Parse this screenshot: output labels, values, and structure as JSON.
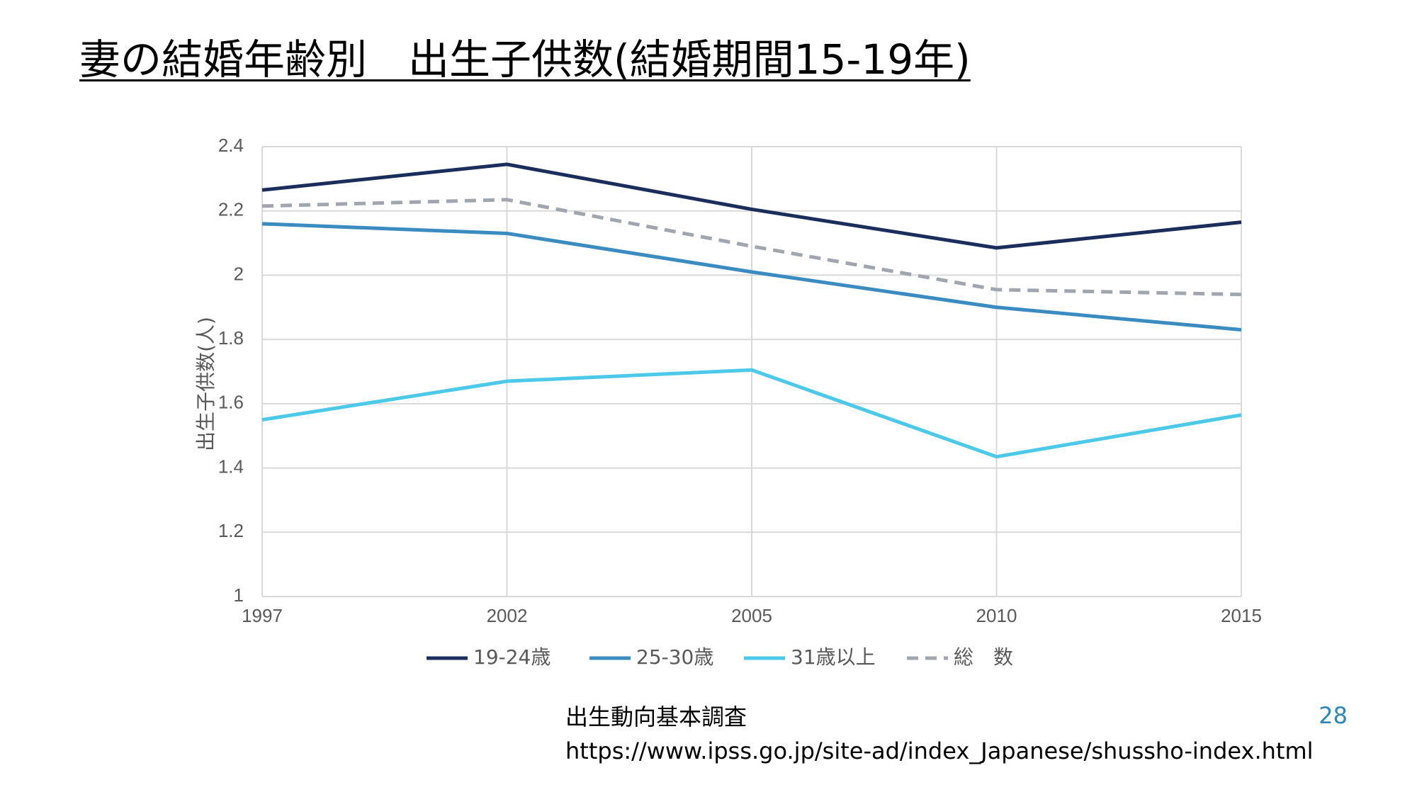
{
  "slide": {
    "title": "妻の結婚年齢別　出生子供数(結婚期間15-19年)",
    "source_label": "出生動向基本調査",
    "source_url": "https://www.ipss.go.jp/site-ad/index_Japanese/shussho-index.html",
    "page_number": "28"
  },
  "chart_data": {
    "type": "line",
    "title": "",
    "xlabel": "",
    "ylabel": "出生子供数(人)",
    "categories": [
      "1997",
      "2002",
      "2005",
      "2010",
      "2015"
    ],
    "ylim": [
      1,
      2.4
    ],
    "yticks": [
      1,
      1.2,
      1.4,
      1.6,
      1.8,
      2,
      2.2,
      2.4
    ],
    "ytick_labels": [
      "1",
      "1.2",
      "1.4",
      "1.6",
      "1.8",
      "2",
      "2.2",
      "2.4"
    ],
    "grid": true,
    "legend_position": "bottom",
    "series": [
      {
        "name": "19-24歳",
        "values": [
          2.265,
          2.345,
          2.205,
          2.085,
          2.165
        ],
        "color": "#1B2D5A",
        "dash": "solid"
      },
      {
        "name": "25-30歳",
        "values": [
          2.16,
          2.13,
          2.01,
          1.9,
          1.83
        ],
        "color": "#3A8BC0",
        "dash": "solid"
      },
      {
        "name": "31歳以上",
        "values": [
          1.55,
          1.67,
          1.705,
          1.435,
          1.565
        ],
        "color": "#4CC9E8",
        "dash": "solid"
      },
      {
        "name": "総　数",
        "values": [
          2.215,
          2.235,
          2.09,
          1.955,
          1.94
        ],
        "color": "#A0A5AE",
        "dash": "dashed"
      }
    ]
  }
}
